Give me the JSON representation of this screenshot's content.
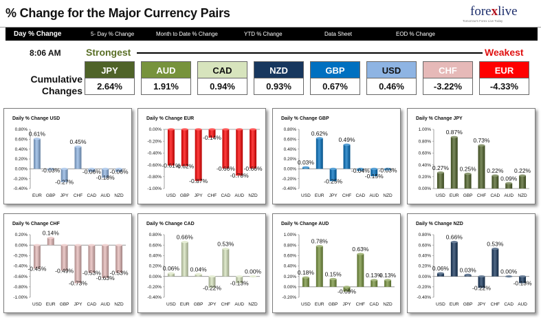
{
  "header": {
    "title": "% Change for the Major Currency Pairs",
    "logo": {
      "text_pre": "fore",
      "text_x": "x",
      "text_post": "live",
      "tagline": "Tomorrow's Forex Live Today"
    }
  },
  "nav": {
    "items": [
      "Day % Change",
      "5- Day % Change",
      "Month to Date % Change",
      "YTD % Change",
      "Data Sheet",
      "EOD % Change"
    ]
  },
  "summary": {
    "time": "8:06 AM",
    "strongest_label": "Strongest",
    "weakest_label": "Weakest",
    "cumulative_label": "Cumulative Changes",
    "tiles": [
      {
        "currency": "JPY",
        "value": "2.64%",
        "bg": "#4f6328",
        "fg": "#ffffff"
      },
      {
        "currency": "AUD",
        "value": "1.91%",
        "bg": "#77933c",
        "fg": "#ffffff"
      },
      {
        "currency": "CAD",
        "value": "0.94%",
        "bg": "#d7e4bd",
        "fg": "#111111"
      },
      {
        "currency": "NZD",
        "value": "0.93%",
        "bg": "#17375e",
        "fg": "#ffffff"
      },
      {
        "currency": "GBP",
        "value": "0.67%",
        "bg": "#0070c0",
        "fg": "#ffffff"
      },
      {
        "currency": "USD",
        "value": "0.46%",
        "bg": "#8eb4e3",
        "fg": "#111111"
      },
      {
        "currency": "CHF",
        "value": "-3.22%",
        "bg": "#e6b9b8",
        "fg": "#ffffff"
      },
      {
        "currency": "EUR",
        "value": "-4.33%",
        "bg": "#ff0000",
        "fg": "#ffffff"
      }
    ]
  },
  "chart_data": [
    {
      "type": "bar",
      "title": "Daily % Change USD",
      "categories": [
        "EUR",
        "GBP",
        "JPY",
        "CHF",
        "CAD",
        "AUD",
        "NZD"
      ],
      "values": [
        0.61,
        -0.03,
        -0.27,
        0.45,
        -0.06,
        -0.18,
        -0.06
      ],
      "labels": [
        "0.61%",
        "-0.03%",
        "-0.27%",
        "0.45%",
        "-0.06%",
        "-0.18%",
        "-0.06%"
      ],
      "ylim": [
        -0.4,
        0.8
      ],
      "yticks": [
        "0.80%",
        "0.60%",
        "0.40%",
        "0.20%",
        "0.00%",
        "-0.20%",
        "-0.40%"
      ],
      "color": "#8eb4e3"
    },
    {
      "type": "bar",
      "title": "Daily % Change EUR",
      "categories": [
        "USD",
        "GBP",
        "JPY",
        "CHF",
        "CAD",
        "AUD",
        "NZD"
      ],
      "values": [
        -0.61,
        -0.62,
        -0.87,
        -0.14,
        -0.66,
        -0.78,
        -0.66
      ],
      "labels": [
        "-0.61%",
        "-0.62%",
        "-0.87%",
        "-0.14%",
        "-0.66%",
        "-0.78%",
        "-0.66%"
      ],
      "ylim": [
        -1.0,
        0.0
      ],
      "yticks": [
        "0.00%",
        "-0.20%",
        "-0.40%",
        "-0.60%",
        "-0.80%",
        "-1.00%"
      ],
      "color": "#ff0000"
    },
    {
      "type": "bar",
      "title": "Daily % Change GBP",
      "categories": [
        "USD",
        "EUR",
        "JPY",
        "CHF",
        "CAD",
        "AUD",
        "NZD"
      ],
      "values": [
        0.03,
        0.62,
        -0.25,
        0.49,
        -0.04,
        -0.15,
        -0.03
      ],
      "labels": [
        "0.03%",
        "0.62%",
        "-0.25%",
        "0.49%",
        "-0.04%",
        "-0.15%",
        "-0.03%"
      ],
      "ylim": [
        -0.4,
        0.8
      ],
      "yticks": [
        "0.80%",
        "0.60%",
        "0.40%",
        "0.20%",
        "0.00%",
        "-0.20%",
        "-0.40%"
      ],
      "color": "#0070c0"
    },
    {
      "type": "bar",
      "title": "Daily % Change JPY",
      "categories": [
        "USD",
        "EUR",
        "GBP",
        "CHF",
        "CAD",
        "AUD",
        "NZD"
      ],
      "values": [
        0.27,
        0.87,
        0.25,
        0.73,
        0.22,
        0.09,
        0.22
      ],
      "labels": [
        "0.27%",
        "0.87%",
        "0.25%",
        "0.73%",
        "0.22%",
        "0.09%",
        "0.22%"
      ],
      "ylim": [
        0.0,
        1.0
      ],
      "yticks": [
        "1.00%",
        "0.80%",
        "0.60%",
        "0.40%",
        "0.20%",
        "0.00%"
      ],
      "color": "#4f6328"
    },
    {
      "type": "bar",
      "title": "Daily % Change CHF",
      "categories": [
        "USD",
        "EUR",
        "GBP",
        "JPY",
        "CAD",
        "AUD",
        "NZD"
      ],
      "values": [
        -0.45,
        0.14,
        -0.49,
        -0.73,
        -0.53,
        -0.63,
        -0.53
      ],
      "labels": [
        "-0.45%",
        "0.14%",
        "-0.49%",
        "-0.73%",
        "-0.53%",
        "-0.63%",
        "-0.53%"
      ],
      "ylim": [
        -1.0,
        0.2
      ],
      "yticks": [
        "0.20%",
        "0.00%",
        "-0.20%",
        "-0.40%",
        "-0.60%",
        "-0.80%",
        "-1.00%"
      ],
      "color": "#e6b9b8"
    },
    {
      "type": "bar",
      "title": "Daily % Change CAD",
      "categories": [
        "USD",
        "EUR",
        "GBP",
        "JPY",
        "CHF",
        "AUD",
        "NZD"
      ],
      "values": [
        0.06,
        0.66,
        0.04,
        -0.22,
        0.53,
        -0.13,
        0.0
      ],
      "labels": [
        "0.06%",
        "0.66%",
        "0.04%",
        "-0.22%",
        "0.53%",
        "-0.13%",
        "0.00%"
      ],
      "ylim": [
        -0.4,
        0.8
      ],
      "yticks": [
        "0.80%",
        "0.60%",
        "0.40%",
        "0.20%",
        "0.00%",
        "-0.20%",
        "-0.40%"
      ],
      "color": "#d7e4bd"
    },
    {
      "type": "bar",
      "title": "Daily % Change AUD",
      "categories": [
        "USD",
        "EUR",
        "GBP",
        "JPY",
        "CHF",
        "CAD",
        "NZD"
      ],
      "values": [
        0.18,
        0.78,
        0.15,
        -0.09,
        0.63,
        0.13,
        0.13
      ],
      "labels": [
        "0.18%",
        "0.78%",
        "0.15%",
        "-0.09%",
        "0.63%",
        "0.13%",
        "0.13%"
      ],
      "ylim": [
        -0.2,
        1.0
      ],
      "yticks": [
        "1.00%",
        "0.80%",
        "0.60%",
        "0.40%",
        "0.20%",
        "0.00%",
        "-0.20%"
      ],
      "color": "#77933c"
    },
    {
      "type": "bar",
      "title": "Daily % Change NZD",
      "categories": [
        "USD",
        "EUR",
        "GBP",
        "JPY",
        "CHF",
        "CAD",
        "AUD"
      ],
      "values": [
        0.06,
        0.66,
        0.03,
        -0.22,
        0.53,
        0.0,
        -0.13
      ],
      "labels": [
        "0.06%",
        "0.66%",
        "0.03%",
        "-0.22%",
        "0.53%",
        "0.00%",
        "-0.13%"
      ],
      "ylim": [
        -0.4,
        0.8
      ],
      "yticks": [
        "0.80%",
        "0.60%",
        "0.40%",
        "0.20%",
        "0.00%",
        "-0.20%",
        "-0.40%"
      ],
      "color": "#17375e"
    }
  ]
}
